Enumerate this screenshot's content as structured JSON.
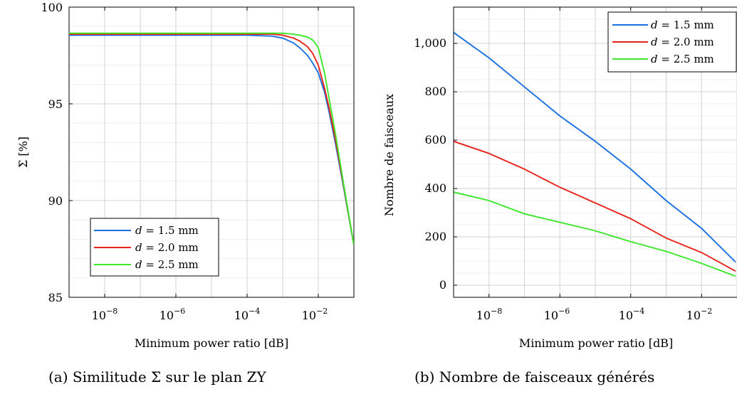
{
  "chart_data": [
    {
      "type": "line",
      "xscale": "log",
      "xlim": [
        1e-09,
        0.1
      ],
      "ylim": [
        85,
        100
      ],
      "xlabel": "Minimum power ratio [dB]",
      "ylabel": "Σ [%]",
      "caption": "(a) Similitude Σ sur le plan ZY",
      "grid": true,
      "legend_position": "lower-left",
      "xticks": [
        1e-08,
        1e-06,
        0.0001,
        0.01
      ],
      "xtick_labels": [
        "10",
        "10",
        "10",
        "10"
      ],
      "xtick_exponents": [
        "−8",
        "−6",
        "−4",
        "−2"
      ],
      "yticks": [
        85,
        90,
        95,
        100
      ],
      "ytick_labels": [
        "85",
        "90",
        "95",
        "100"
      ],
      "series": [
        {
          "name": "d = 1.5 mm",
          "legend_var": "d",
          "legend_rest": " = 1.5 mm",
          "color": "#1a6fe0",
          "x": [
            1e-09,
            1e-05,
            0.0001,
            0.0005,
            0.001,
            0.002,
            0.003,
            0.005,
            0.007,
            0.01,
            0.015,
            0.02,
            0.03,
            0.05,
            0.1
          ],
          "y": [
            98.55,
            98.55,
            98.55,
            98.5,
            98.4,
            98.15,
            97.9,
            97.5,
            97.1,
            96.6,
            95.6,
            94.6,
            93.0,
            90.8,
            87.7
          ]
        },
        {
          "name": "d = 2.0 mm",
          "legend_var": "d",
          "legend_rest": " = 2.0 mm",
          "color": "#e8231a",
          "x": [
            1e-09,
            1e-05,
            0.0001,
            0.0005,
            0.001,
            0.002,
            0.003,
            0.005,
            0.007,
            0.01,
            0.015,
            0.02,
            0.03,
            0.05,
            0.1
          ],
          "y": [
            98.6,
            98.6,
            98.6,
            98.6,
            98.55,
            98.4,
            98.25,
            97.95,
            97.6,
            97.0,
            95.8,
            94.8,
            93.2,
            90.9,
            87.7
          ]
        },
        {
          "name": "d = 2.5 mm",
          "legend_var": "d",
          "legend_rest": " = 2.5 mm",
          "color": "#3de82a",
          "x": [
            1e-09,
            1e-05,
            0.0001,
            0.0005,
            0.001,
            0.002,
            0.003,
            0.005,
            0.007,
            0.01,
            0.015,
            0.02,
            0.03,
            0.05,
            0.1
          ],
          "y": [
            98.65,
            98.65,
            98.65,
            98.65,
            98.65,
            98.6,
            98.55,
            98.45,
            98.3,
            97.9,
            96.6,
            95.3,
            93.5,
            91.0,
            87.7
          ]
        }
      ]
    },
    {
      "type": "line",
      "xscale": "log",
      "xlim": [
        1e-09,
        0.1
      ],
      "ylim": [
        -50,
        1150
      ],
      "xlabel": "Minimum power ratio [dB]",
      "ylabel": "Nombre de faisceaux",
      "caption": "(b) Nombre de faisceaux générés",
      "grid": true,
      "legend_position": "top-right",
      "xticks": [
        1e-08,
        1e-06,
        0.0001,
        0.01
      ],
      "xtick_labels": [
        "10",
        "10",
        "10",
        "10"
      ],
      "xtick_exponents": [
        "−8",
        "−6",
        "−4",
        "−2"
      ],
      "yticks": [
        0,
        200,
        400,
        600,
        800,
        1000
      ],
      "ytick_labels": [
        "0",
        "200",
        "400",
        "600",
        "800",
        "1,000"
      ],
      "series": [
        {
          "name": "d = 1.5 mm",
          "legend_var": "d",
          "legend_rest": " = 1.5 mm",
          "color": "#1a6fe0",
          "x": [
            1e-09,
            1e-08,
            1e-07,
            1e-06,
            1e-05,
            0.0001,
            0.001,
            0.01,
            0.1
          ],
          "y": [
            1045,
            940,
            820,
            700,
            595,
            480,
            350,
            235,
            90
          ]
        },
        {
          "name": "d = 2.0 mm",
          "legend_var": "d",
          "legend_rest": " = 2.0 mm",
          "color": "#e8231a",
          "x": [
            1e-09,
            1e-08,
            1e-07,
            1e-06,
            1e-05,
            0.0001,
            0.001,
            0.01,
            0.1
          ],
          "y": [
            595,
            545,
            480,
            405,
            340,
            275,
            195,
            135,
            55
          ]
        },
        {
          "name": "d = 2.5 mm",
          "legend_var": "d",
          "legend_rest": " = 2.5 mm",
          "color": "#3de82a",
          "x": [
            1e-09,
            1e-08,
            1e-07,
            1e-06,
            1e-05,
            0.0001,
            0.001,
            0.01,
            0.1
          ],
          "y": [
            385,
            350,
            295,
            260,
            225,
            180,
            140,
            90,
            35
          ]
        }
      ]
    }
  ]
}
